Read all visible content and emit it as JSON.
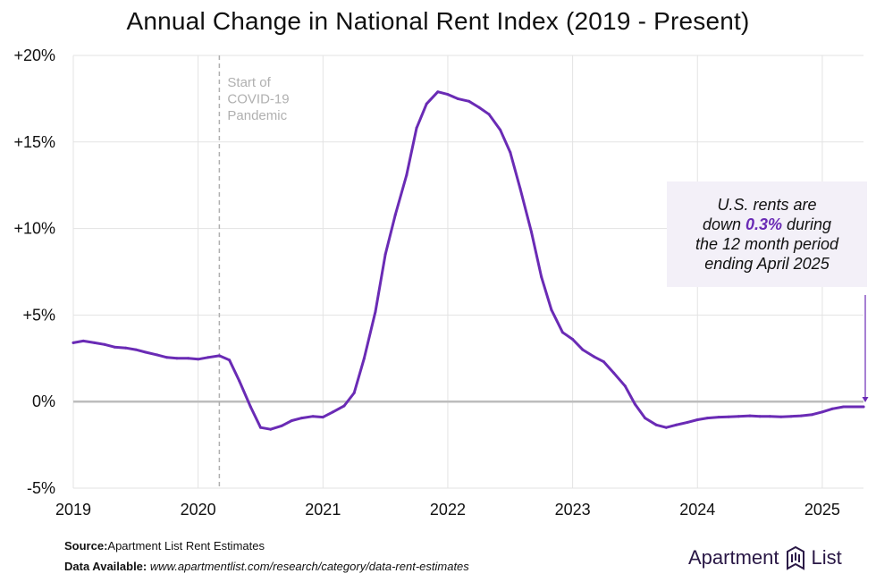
{
  "title": "Annual Change in National Rent Index (2019 - Present)",
  "annotation": {
    "covid_lines": [
      "Start of",
      "COVID-19",
      "Pandemic"
    ],
    "callout_pre": "U.S. rents are",
    "callout_mid_before": "down ",
    "callout_pct": "0.3%",
    "callout_mid_after": " during",
    "callout_line3": "the 12 month period",
    "callout_line4": "ending April 2025"
  },
  "footer": {
    "source_label": "Source:",
    "source_text": "Apartment List Rent Estimates",
    "data_label": "Data Available:",
    "data_text": "www.apartmentlist.com/research/category/data-rent-estimates"
  },
  "logo": {
    "left": "Apartment",
    "right": "List"
  },
  "colors": {
    "line": "#6a2bb5",
    "zero": "#bdbdbd",
    "grid": "#e3e3e3",
    "covid": "#b0b0b0",
    "callout_bg": "#f3f0f8"
  },
  "chart_data": {
    "type": "line",
    "title": "Annual Change in National Rent Index (2019 - Present)",
    "xlabel": "",
    "ylabel": "",
    "ylim": [
      -5,
      20
    ],
    "xlim": [
      2019,
      2025.33
    ],
    "y_ticks": [
      "+20%",
      "+15%",
      "+10%",
      "+5%",
      "0%",
      "-5%"
    ],
    "y_tick_values": [
      20,
      15,
      10,
      5,
      0,
      -5
    ],
    "x_ticks": [
      "2019",
      "2020",
      "2021",
      "2022",
      "2023",
      "2024",
      "2025"
    ],
    "x_tick_values": [
      2019,
      2020,
      2021,
      2022,
      2023,
      2024,
      2025
    ],
    "grid": "horizontal and vertical at ticks",
    "covid_marker_x": 2020.17,
    "series": [
      {
        "values": [
          [
            2019.0,
            3.4
          ],
          [
            2019.08,
            3.5
          ],
          [
            2019.17,
            3.4
          ],
          [
            2019.25,
            3.3
          ],
          [
            2019.33,
            3.15
          ],
          [
            2019.42,
            3.1
          ],
          [
            2019.5,
            3.0
          ],
          [
            2019.58,
            2.85
          ],
          [
            2019.67,
            2.7
          ],
          [
            2019.75,
            2.55
          ],
          [
            2019.83,
            2.5
          ],
          [
            2019.92,
            2.5
          ],
          [
            2020.0,
            2.45
          ],
          [
            2020.08,
            2.55
          ],
          [
            2020.17,
            2.65
          ],
          [
            2020.25,
            2.4
          ],
          [
            2020.33,
            1.2
          ],
          [
            2020.42,
            -0.3
          ],
          [
            2020.5,
            -1.5
          ],
          [
            2020.58,
            -1.6
          ],
          [
            2020.67,
            -1.4
          ],
          [
            2020.75,
            -1.1
          ],
          [
            2020.83,
            -0.95
          ],
          [
            2020.92,
            -0.85
          ],
          [
            2021.0,
            -0.9
          ],
          [
            2021.08,
            -0.6
          ],
          [
            2021.17,
            -0.25
          ],
          [
            2021.25,
            0.5
          ],
          [
            2021.33,
            2.5
          ],
          [
            2021.42,
            5.2
          ],
          [
            2021.5,
            8.5
          ],
          [
            2021.58,
            10.8
          ],
          [
            2021.67,
            13.1
          ],
          [
            2021.75,
            15.8
          ],
          [
            2021.83,
            17.2
          ],
          [
            2021.92,
            17.9
          ],
          [
            2022.0,
            17.75
          ],
          [
            2022.08,
            17.5
          ],
          [
            2022.17,
            17.35
          ],
          [
            2022.25,
            17.0
          ],
          [
            2022.33,
            16.6
          ],
          [
            2022.42,
            15.7
          ],
          [
            2022.5,
            14.4
          ],
          [
            2022.58,
            12.3
          ],
          [
            2022.67,
            9.8
          ],
          [
            2022.75,
            7.2
          ],
          [
            2022.83,
            5.3
          ],
          [
            2022.92,
            4.0
          ],
          [
            2023.0,
            3.6
          ],
          [
            2023.08,
            3.0
          ],
          [
            2023.17,
            2.6
          ],
          [
            2023.25,
            2.3
          ],
          [
            2023.33,
            1.65
          ],
          [
            2023.42,
            0.9
          ],
          [
            2023.5,
            -0.15
          ],
          [
            2023.58,
            -0.95
          ],
          [
            2023.67,
            -1.35
          ],
          [
            2023.75,
            -1.5
          ],
          [
            2023.83,
            -1.35
          ],
          [
            2023.92,
            -1.2
          ],
          [
            2024.0,
            -1.05
          ],
          [
            2024.08,
            -0.95
          ],
          [
            2024.17,
            -0.9
          ],
          [
            2024.25,
            -0.88
          ],
          [
            2024.33,
            -0.85
          ],
          [
            2024.42,
            -0.82
          ],
          [
            2024.5,
            -0.85
          ],
          [
            2024.58,
            -0.85
          ],
          [
            2024.67,
            -0.88
          ],
          [
            2024.75,
            -0.85
          ],
          [
            2024.83,
            -0.82
          ],
          [
            2024.92,
            -0.75
          ],
          [
            2025.0,
            -0.6
          ],
          [
            2025.08,
            -0.42
          ],
          [
            2025.17,
            -0.3
          ],
          [
            2025.25,
            -0.3
          ],
          [
            2025.33,
            -0.3
          ]
        ]
      }
    ]
  }
}
